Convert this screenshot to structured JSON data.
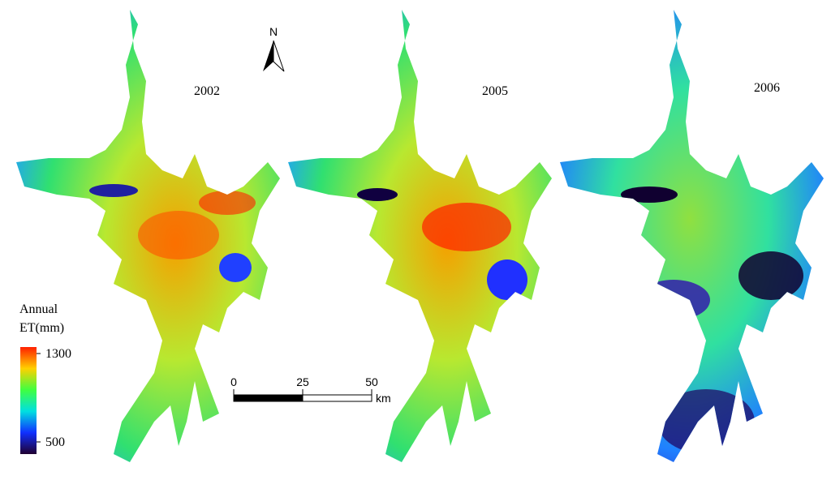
{
  "panels": [
    {
      "label": "2002"
    },
    {
      "label": "2005"
    },
    {
      "label": "2006"
    }
  ],
  "north_arrow": {
    "label": "N"
  },
  "legend": {
    "title": [
      "Annual",
      "ET(mm)"
    ],
    "max": 1300,
    "min": 500
  },
  "scale_bar": {
    "ticks": [
      0,
      25,
      50
    ],
    "unit": "km"
  }
}
